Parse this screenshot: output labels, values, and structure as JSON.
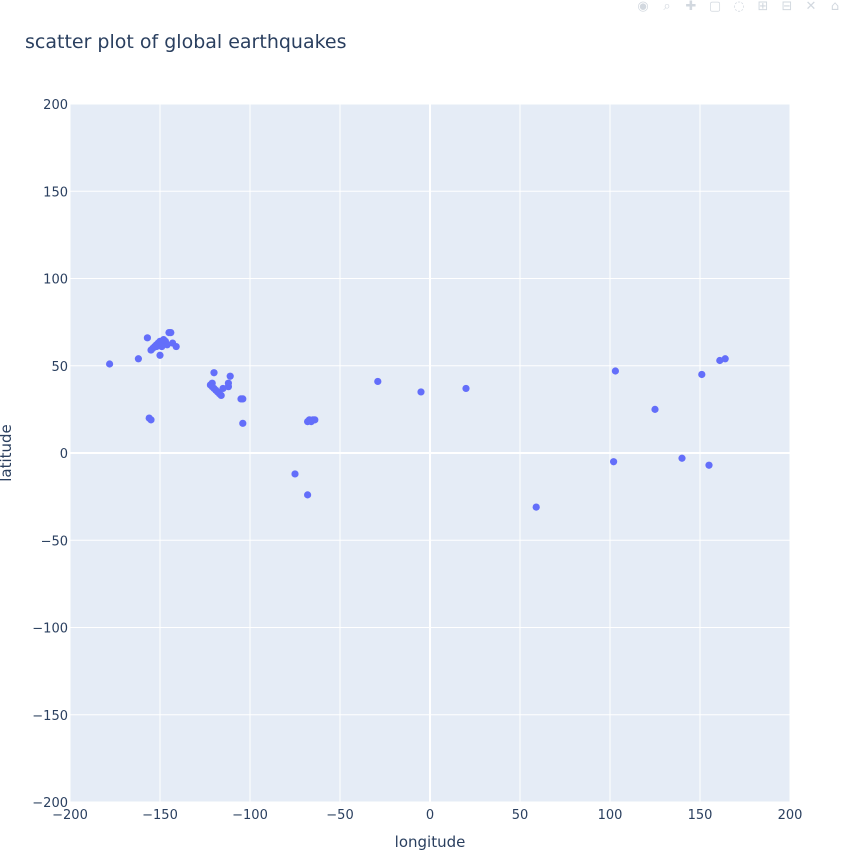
{
  "chart_data": {
    "type": "scatter",
    "title": "scatter plot of global earthquakes",
    "xlabel": "longitude",
    "ylabel": "latitude",
    "xlim": [
      -200,
      200
    ],
    "ylim": [
      -200,
      200
    ],
    "xticks": [
      -200,
      -150,
      -100,
      -50,
      0,
      50,
      100,
      150,
      200
    ],
    "yticks": [
      200,
      150,
      100,
      50,
      0,
      -50,
      -100,
      -150,
      -200
    ],
    "x_tick_labels": [
      "−200",
      "−150",
      "−100",
      "−50",
      "0",
      "50",
      "100",
      "150",
      "200"
    ],
    "y_tick_labels": [
      "200",
      "150",
      "100",
      "50",
      "0",
      "−50",
      "−100",
      "−150",
      "−200"
    ],
    "grid": true,
    "marker_color": "#636efa",
    "plot_bg": "#e5ecf6",
    "points": [
      {
        "x": -178,
        "y": 51
      },
      {
        "x": -162,
        "y": 54
      },
      {
        "x": -157,
        "y": 66
      },
      {
        "x": -155,
        "y": 59
      },
      {
        "x": -154,
        "y": 60
      },
      {
        "x": -153,
        "y": 61
      },
      {
        "x": -152,
        "y": 62
      },
      {
        "x": -151,
        "y": 63
      },
      {
        "x": -150,
        "y": 64
      },
      {
        "x": -149,
        "y": 63
      },
      {
        "x": -148,
        "y": 65
      },
      {
        "x": -147,
        "y": 64
      },
      {
        "x": -146,
        "y": 62
      },
      {
        "x": -145,
        "y": 69
      },
      {
        "x": -144,
        "y": 69
      },
      {
        "x": -143,
        "y": 63
      },
      {
        "x": -141,
        "y": 61
      },
      {
        "x": -150,
        "y": 56
      },
      {
        "x": -152,
        "y": 61
      },
      {
        "x": -149,
        "y": 61
      },
      {
        "x": -156,
        "y": 20
      },
      {
        "x": -155,
        "y": 19
      },
      {
        "x": -122,
        "y": 39
      },
      {
        "x": -121,
        "y": 40
      },
      {
        "x": -121,
        "y": 38
      },
      {
        "x": -120,
        "y": 46
      },
      {
        "x": -120,
        "y": 37
      },
      {
        "x": -119,
        "y": 36
      },
      {
        "x": -118,
        "y": 35
      },
      {
        "x": -117,
        "y": 34
      },
      {
        "x": -116,
        "y": 33
      },
      {
        "x": -115,
        "y": 37
      },
      {
        "x": -112,
        "y": 38
      },
      {
        "x": -112,
        "y": 40
      },
      {
        "x": -111,
        "y": 44
      },
      {
        "x": -105,
        "y": 31
      },
      {
        "x": -104,
        "y": 31
      },
      {
        "x": -104,
        "y": 17
      },
      {
        "x": -75,
        "y": -12
      },
      {
        "x": -68,
        "y": -24
      },
      {
        "x": -68,
        "y": 18
      },
      {
        "x": -67,
        "y": 19
      },
      {
        "x": -66,
        "y": 18
      },
      {
        "x": -65,
        "y": 19
      },
      {
        "x": -64,
        "y": 19
      },
      {
        "x": -29,
        "y": 41
      },
      {
        "x": -5,
        "y": 35
      },
      {
        "x": 20,
        "y": 37
      },
      {
        "x": 59,
        "y": -31
      },
      {
        "x": 102,
        "y": -5
      },
      {
        "x": 103,
        "y": 47
      },
      {
        "x": 125,
        "y": 25
      },
      {
        "x": 140,
        "y": -3
      },
      {
        "x": 151,
        "y": 45
      },
      {
        "x": 155,
        "y": -7
      },
      {
        "x": 161,
        "y": 53
      },
      {
        "x": 164,
        "y": 54
      }
    ]
  }
}
